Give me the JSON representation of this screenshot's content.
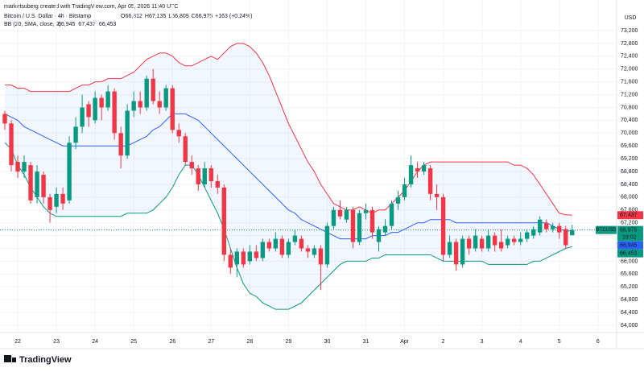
{
  "header": {
    "credit": "marketsuberg created with TradingView.com, Apr 05, 2026 11:40 UTC",
    "symbol": "Bitcoin / U.S. Dollar · 4h · Bitstamp",
    "ohlc": [
      {
        "key": "O",
        "value": "66,812"
      },
      {
        "key": "H",
        "value": "67,135"
      },
      {
        "key": "L",
        "value": "66,809"
      },
      {
        "key": "C",
        "value": "66,975"
      }
    ],
    "change": "+163 (+0.24%)",
    "indicator": "BB (20, SMA, close, 2)",
    "indicator_values": [
      {
        "text": "66,945",
        "color": "#2962ff"
      },
      {
        "text": "67,437",
        "color": "#f23645"
      },
      {
        "text": "66,453",
        "color": "#089981"
      }
    ]
  },
  "footer": {
    "brand": "TradingView"
  },
  "chart_data": {
    "type": "candlestick",
    "currency": "USD",
    "up_color": "#089981",
    "down_color": "#f23645",
    "open": [
      70600,
      70300,
      69100,
      68800,
      69000,
      68000,
      68700,
      68000,
      67700,
      68100,
      67900,
      69700,
      70200,
      70900,
      70400,
      71100,
      70800,
      71300,
      70000,
      69300,
      70700,
      71000,
      70800,
      71700,
      71000,
      70800,
      71400,
      70100,
      69900,
      69100,
      68900,
      68400,
      68900,
      68500,
      68300,
      66200,
      65900,
      66300,
      66000,
      66300,
      66100,
      66600,
      66400,
      66700,
      66200,
      66600,
      66700,
      66400,
      66200,
      66400,
      65900,
      67100,
      67600,
      67300,
      67600,
      66600,
      67500,
      67600,
      66600,
      66900,
      67100,
      67800,
      68000,
      68400,
      68900,
      68800,
      68900,
      68100,
      68000,
      66200,
      66600,
      65900,
      66700,
      66400,
      66700,
      66400,
      66800,
      66600,
      66500,
      66700,
      66600,
      66700,
      66800,
      66900,
      67200,
      67000,
      67100,
      67000,
      66812
    ],
    "high": [
      70700,
      70400,
      69300,
      69300,
      69100,
      69000,
      68800,
      68100,
      68300,
      68300,
      69900,
      70500,
      71200,
      71000,
      71300,
      71200,
      71500,
      71400,
      70200,
      70900,
      71300,
      71300,
      71800,
      72000,
      71300,
      71500,
      71500,
      70300,
      70000,
      69300,
      69000,
      69100,
      69000,
      68700,
      68400,
      66400,
      66400,
      66400,
      66500,
      66500,
      66700,
      66700,
      66900,
      66800,
      66700,
      67000,
      66800,
      66500,
      66500,
      66500,
      67200,
      67700,
      67900,
      67700,
      67700,
      67600,
      67800,
      67700,
      67100,
      67300,
      67900,
      68200,
      68600,
      69300,
      69100,
      69100,
      69000,
      68400,
      68100,
      66800,
      66700,
      66800,
      66800,
      67000,
      66800,
      67000,
      66900,
      67000,
      66800,
      66800,
      66900,
      67000,
      67100,
      67400,
      67300,
      67200,
      67200,
      67100,
      67135
    ],
    "low": [
      70100,
      68800,
      68600,
      68600,
      67800,
      67800,
      67800,
      67200,
      67500,
      67600,
      67800,
      69500,
      70000,
      70200,
      70300,
      70400,
      70700,
      69800,
      68900,
      69200,
      70500,
      70600,
      70700,
      70900,
      70600,
      70700,
      70000,
      69700,
      69000,
      68700,
      68200,
      68300,
      68300,
      68100,
      66000,
      65600,
      65500,
      65800,
      65900,
      66000,
      66000,
      66300,
      66300,
      66100,
      66100,
      66500,
      66300,
      66100,
      66100,
      65100,
      65800,
      67000,
      67300,
      67200,
      66400,
      66500,
      67300,
      66700,
      66300,
      66800,
      67000,
      67600,
      67900,
      68300,
      68600,
      68700,
      67900,
      67600,
      66000,
      66100,
      65700,
      65800,
      66200,
      66300,
      66300,
      66300,
      66300,
      66300,
      66400,
      66500,
      66500,
      66600,
      66700,
      66800,
      66900,
      66900,
      66700,
      66400,
      66809
    ],
    "close": [
      70300,
      69000,
      68800,
      69100,
      67900,
      68800,
      68000,
      67600,
      68100,
      67800,
      69700,
      70200,
      70800,
      70500,
      71100,
      70800,
      71300,
      70000,
      69300,
      70700,
      71000,
      70800,
      71700,
      71000,
      70800,
      71400,
      70100,
      69900,
      69100,
      68900,
      68400,
      68900,
      68500,
      68300,
      66200,
      65800,
      66300,
      65900,
      66300,
      66100,
      66600,
      66400,
      66700,
      66200,
      66600,
      66800,
      66400,
      66300,
      66400,
      65900,
      67100,
      67600,
      67400,
      67600,
      66600,
      67500,
      67600,
      66900,
      67000,
      67100,
      67800,
      68000,
      68400,
      69000,
      68800,
      69000,
      68100,
      68000,
      66200,
      66600,
      65900,
      66700,
      66400,
      66800,
      66400,
      66800,
      66500,
      66400,
      66700,
      66600,
      66700,
      66900,
      67000,
      67300,
      67000,
      67100,
      66900,
      66500,
      66975
    ],
    "bands": [
      {
        "color": "#f23645",
        "values": [
          71500,
          71500,
          71400,
          71400,
          71300,
          71300,
          71300,
          71300,
          71300,
          71300,
          71300,
          71400,
          71500,
          71500,
          71600,
          71600,
          71700,
          71700,
          71700,
          71800,
          71900,
          72100,
          72300,
          72400,
          72500,
          72500,
          72400,
          72200,
          72100,
          72100,
          72200,
          72300,
          72400,
          72300,
          72500,
          72700,
          72800,
          72800,
          72700,
          72500,
          72200,
          71800,
          71300,
          70800,
          70300,
          69900,
          69500,
          69100,
          68800,
          68400,
          68100,
          67800,
          67700,
          67600,
          67600,
          67700,
          67600,
          67500,
          67600,
          67600,
          67800,
          68000,
          68200,
          68500,
          68800,
          69000,
          69100,
          69100,
          69100,
          69100,
          69100,
          69100,
          69100,
          69100,
          69100,
          69100,
          69100,
          69100,
          69100,
          69000,
          69000,
          68900,
          68700,
          68400,
          68100,
          67800,
          67500,
          67450,
          67437
        ]
      },
      {
        "color": "#2962ff",
        "values": [
          70600,
          70500,
          70400,
          70200,
          70100,
          70000,
          69900,
          69800,
          69700,
          69600,
          69600,
          69600,
          69600,
          69600,
          69600,
          69600,
          69600,
          69600,
          69600,
          69600,
          69700,
          69800,
          69900,
          70100,
          70200,
          70400,
          70600,
          70600,
          70600,
          70500,
          70400,
          70200,
          70000,
          69800,
          69600,
          69400,
          69200,
          69000,
          68800,
          68600,
          68400,
          68200,
          68000,
          67800,
          67600,
          67500,
          67300,
          67200,
          67100,
          67000,
          66900,
          66800,
          66700,
          66700,
          66700,
          66700,
          66700,
          66800,
          66800,
          66800,
          66900,
          66900,
          67000,
          67100,
          67200,
          67200,
          67300,
          67300,
          67300,
          67300,
          67200,
          67200,
          67200,
          67200,
          67200,
          67200,
          67200,
          67200,
          67200,
          67200,
          67200,
          67200,
          67200,
          67200,
          67200,
          67100,
          67000,
          66950,
          66945
        ]
      },
      {
        "color": "#089981",
        "values": [
          69700,
          69500,
          69000,
          68700,
          68300,
          68000,
          67700,
          67500,
          67400,
          67400,
          67400,
          67400,
          67400,
          67400,
          67400,
          67400,
          67400,
          67400,
          67400,
          67500,
          67500,
          67500,
          67500,
          67600,
          67800,
          68000,
          68300,
          68700,
          69000,
          69000,
          68700,
          68300,
          67900,
          67500,
          67000,
          66400,
          65800,
          65300,
          65000,
          64900,
          64700,
          64600,
          64500,
          64500,
          64500,
          64600,
          64700,
          64900,
          65100,
          65300,
          65500,
          65700,
          65900,
          66000,
          66000,
          66000,
          66000,
          66100,
          66100,
          66200,
          66200,
          66200,
          66200,
          66200,
          66200,
          66200,
          66200,
          66100,
          66000,
          66000,
          66000,
          66000,
          66000,
          66000,
          66000,
          65900,
          65900,
          65900,
          65900,
          65900,
          65900,
          65900,
          66000,
          66000,
          66100,
          66200,
          66300,
          66400,
          66453
        ]
      }
    ],
    "fill_color": "#2962ff",
    "xlim": [
      -0.75,
      94.9
    ],
    "xticks": [
      {
        "value": 2,
        "label": "22"
      },
      {
        "value": 8,
        "label": "23"
      },
      {
        "value": 14,
        "label": "24"
      },
      {
        "value": 20,
        "label": "25"
      },
      {
        "value": 26,
        "label": "26"
      },
      {
        "value": 32,
        "label": "27"
      },
      {
        "value": 38,
        "label": "28"
      },
      {
        "value": 44,
        "label": "29"
      },
      {
        "value": 50,
        "label": "30"
      },
      {
        "value": 56,
        "label": "31"
      },
      {
        "value": 62,
        "label": "Apr"
      },
      {
        "value": 68,
        "label": "2"
      },
      {
        "value": 74,
        "label": "3"
      },
      {
        "value": 80,
        "label": "4"
      },
      {
        "value": 86,
        "label": "5"
      },
      {
        "value": 92,
        "label": "6"
      }
    ],
    "ylim": [
      64000,
      73200
    ],
    "yticks": [
      {
        "value": 64000,
        "label": "64,000"
      },
      {
        "value": 64400,
        "label": "64,400"
      },
      {
        "value": 64800,
        "label": "64,800"
      },
      {
        "value": 65200,
        "label": "65,200"
      },
      {
        "value": 65600,
        "label": "65,600"
      },
      {
        "value": 66000,
        "label": "66,000"
      },
      {
        "value": 66400,
        "label": "66,400"
      },
      {
        "value": 66800,
        "label": "66,800"
      },
      {
        "value": 67200,
        "label": "67,200"
      },
      {
        "value": 67600,
        "label": "67,600"
      },
      {
        "value": 68000,
        "label": "68,000"
      },
      {
        "value": 68400,
        "label": "68,400"
      },
      {
        "value": 68800,
        "label": "68,800"
      },
      {
        "value": 69200,
        "label": "69,200"
      },
      {
        "value": 69600,
        "label": "69,600"
      },
      {
        "value": 70000,
        "label": "70,000"
      },
      {
        "value": 70400,
        "label": "70,400"
      },
      {
        "value": 70800,
        "label": "70,800"
      },
      {
        "value": 71200,
        "label": "71,200"
      },
      {
        "value": 71600,
        "label": "71,600"
      },
      {
        "value": 72000,
        "label": "72,000"
      },
      {
        "value": 72400,
        "label": "72,400"
      },
      {
        "value": 72800,
        "label": "72,800"
      },
      {
        "value": 73200,
        "label": "73,200"
      }
    ],
    "price_tags": [
      {
        "value": 67437,
        "label": "67,437",
        "color": "#f23645"
      },
      {
        "value": 66975,
        "label": "66,975",
        "color": "#089981",
        "countdown": "19:02",
        "symbol": "BTCUSD"
      },
      {
        "value": 66945,
        "label": "66,945",
        "color": "#2962ff"
      },
      {
        "value": 66453,
        "label": "66,453",
        "color": "#089981"
      }
    ]
  }
}
